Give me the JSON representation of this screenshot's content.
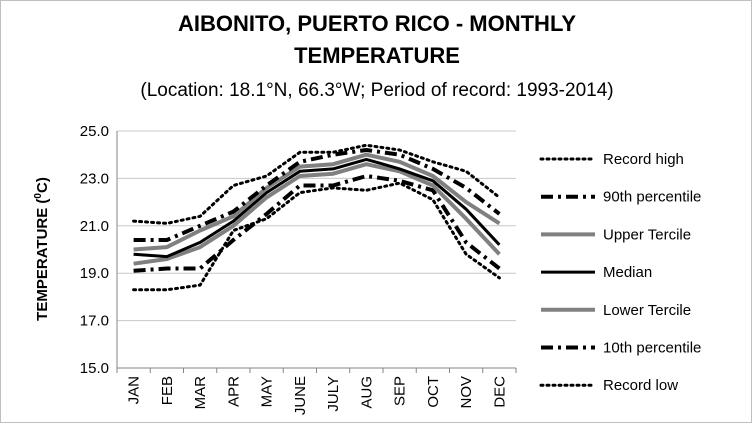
{
  "chart_data": {
    "type": "line",
    "title_line1": "AIBONITO, PUERTO RICO - MONTHLY",
    "title_line2": "TEMPERATURE",
    "subtitle": "(Location: 18.1°N, 66.3°W; Period of record: 1993-2014)",
    "ylabel_main": "TEMPERATURE (",
    "ylabel_sup": "0",
    "ylabel_end": "C)",
    "xlabel": "",
    "ylim": [
      15.0,
      25.0
    ],
    "yticks": [
      "15.0",
      "17.0",
      "19.0",
      "21.0",
      "23.0",
      "25.0"
    ],
    "grid": true,
    "legend_position": "right",
    "categories": [
      "JAN",
      "FEB",
      "MAR",
      "APR",
      "MAY",
      "JUNE",
      "JULY",
      "AUG",
      "SEP",
      "OCT",
      "NOV",
      "DEC"
    ],
    "series": [
      {
        "name": "Record high",
        "color": "#000000",
        "dash": "dotted",
        "width": 3,
        "values": [
          21.2,
          21.1,
          21.4,
          22.7,
          23.1,
          24.1,
          24.1,
          24.4,
          24.2,
          23.7,
          23.3,
          22.2
        ]
      },
      {
        "name": "90th percentile",
        "color": "#000000",
        "dash": "dashdot",
        "width": 4,
        "values": [
          20.4,
          20.4,
          21.0,
          21.6,
          22.7,
          23.7,
          24.0,
          24.2,
          24.0,
          23.4,
          22.6,
          21.5
        ]
      },
      {
        "name": "Upper Tercile",
        "color": "#808080",
        "dash": "solid",
        "width": 4,
        "values": [
          20.0,
          20.1,
          20.8,
          21.4,
          22.6,
          23.5,
          23.6,
          24.0,
          23.7,
          23.1,
          22.0,
          21.1
        ]
      },
      {
        "name": "Median",
        "color": "#000000",
        "dash": "solid",
        "width": 3,
        "values": [
          19.8,
          19.7,
          20.3,
          21.2,
          22.4,
          23.3,
          23.4,
          23.8,
          23.4,
          22.9,
          21.7,
          20.2
        ]
      },
      {
        "name": "Lower Tercile",
        "color": "#808080",
        "dash": "solid",
        "width": 4,
        "values": [
          19.4,
          19.6,
          20.1,
          21.0,
          22.2,
          23.1,
          23.2,
          23.6,
          23.3,
          22.7,
          21.3,
          19.8
        ]
      },
      {
        "name": "10th percentile",
        "color": "#000000",
        "dash": "dashdot",
        "width": 4,
        "values": [
          19.1,
          19.2,
          19.2,
          20.4,
          21.5,
          22.7,
          22.7,
          23.1,
          22.9,
          22.5,
          20.3,
          19.2
        ]
      },
      {
        "name": "Record low",
        "color": "#000000",
        "dash": "dotted",
        "width": 3,
        "values": [
          18.3,
          18.3,
          18.5,
          20.8,
          21.3,
          22.4,
          22.6,
          22.5,
          22.8,
          22.1,
          19.8,
          18.8
        ]
      }
    ]
  }
}
